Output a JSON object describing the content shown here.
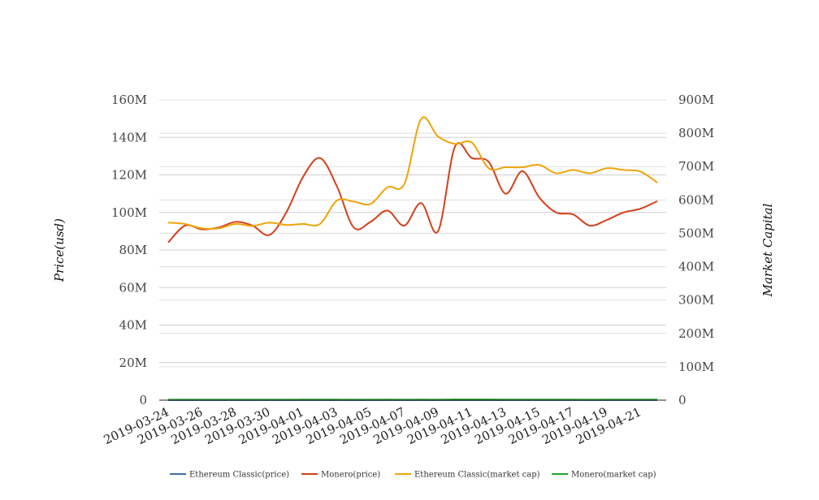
{
  "chart_data": {
    "type": "line",
    "title": "",
    "ylabel": "Price(usd)",
    "y2label": "Market Capital",
    "ylim": [
      0,
      160000000
    ],
    "y2lim": [
      0,
      900000000
    ],
    "yticks": [
      "0",
      "20M",
      "40M",
      "60M",
      "80M",
      "100M",
      "120M",
      "140M",
      "160M"
    ],
    "y2ticks": [
      "0",
      "100M",
      "200M",
      "300M",
      "400M",
      "500M",
      "600M",
      "700M",
      "800M",
      "900M"
    ],
    "xticks": [
      "2019-03-24",
      "2019-03-26",
      "2019-03-28",
      "2019-03-30",
      "2019-04-01",
      "2019-04-03",
      "2019-04-05",
      "2019-04-07",
      "2019-04-09",
      "2019-04-11",
      "2019-04-13",
      "2019-04-15",
      "2019-04-17",
      "2019-04-19",
      "2019-04-21"
    ],
    "x": [
      "2019-03-24",
      "2019-03-25",
      "2019-03-26",
      "2019-03-27",
      "2019-03-28",
      "2019-03-29",
      "2019-03-30",
      "2019-03-31",
      "2019-04-01",
      "2019-04-02",
      "2019-04-03",
      "2019-04-04",
      "2019-04-05",
      "2019-04-06",
      "2019-04-07",
      "2019-04-08",
      "2019-04-09",
      "2019-04-10",
      "2019-04-11",
      "2019-04-12",
      "2019-04-13",
      "2019-04-14",
      "2019-04-15",
      "2019-04-16",
      "2019-04-17",
      "2019-04-18",
      "2019-04-19",
      "2019-04-20",
      "2019-04-21",
      "2019-04-22"
    ],
    "grid": true,
    "legend_position": "bottom",
    "series": [
      {
        "name": "Ethereum Classic(price)",
        "axis": "left",
        "color": "#3a6ea5",
        "values": [
          5.1,
          5.0,
          5.0,
          5.0,
          5.1,
          5.0,
          4.9,
          5.1,
          5.3,
          5.6,
          5.4,
          5.5,
          5.4,
          5.6,
          5.9,
          6.7,
          6.1,
          6.0,
          5.7,
          5.6,
          5.5,
          5.4,
          5.4,
          5.5,
          5.3,
          5.3,
          5.4,
          5.3,
          5.3,
          5.1
        ]
      },
      {
        "name": "Monero(price)",
        "axis": "left",
        "color": "#d4401a",
        "values": [
          84000000,
          93000000,
          91000000,
          92000000,
          95000000,
          93000000,
          88000000,
          100000000,
          119000000,
          129000000,
          114000000,
          92000000,
          95000000,
          101000000,
          93000000,
          105000000,
          90000000,
          135000000,
          129000000,
          127000000,
          110000000,
          122000000,
          108000000,
          100000000,
          99000000,
          93000000,
          96000000,
          100000000,
          102000000,
          106000000
        ]
      },
      {
        "name": "Ethereum Classic(market cap)",
        "axis": "right",
        "color": "#f0a30a",
        "values": [
          532000000,
          528000000,
          515000000,
          515000000,
          528000000,
          522000000,
          532000000,
          525000000,
          528000000,
          528000000,
          598000000,
          595000000,
          588000000,
          638000000,
          648000000,
          843000000,
          790000000,
          768000000,
          772000000,
          695000000,
          698000000,
          698000000,
          705000000,
          680000000,
          690000000,
          680000000,
          695000000,
          690000000,
          685000000,
          652000000
        ]
      },
      {
        "name": "Monero(market cap)",
        "axis": "right",
        "color": "#22a32a",
        "values": [
          1500000,
          1500000,
          1500000,
          1500000,
          1600000,
          1500000,
          1500000,
          1600000,
          1700000,
          1800000,
          1700000,
          1600000,
          1600000,
          1700000,
          1600000,
          1700000,
          1600000,
          2100000,
          2000000,
          2000000,
          1900000,
          1900000,
          1800000,
          1700000,
          1700000,
          1600000,
          1700000,
          1700000,
          1700000,
          1700000
        ]
      }
    ]
  }
}
